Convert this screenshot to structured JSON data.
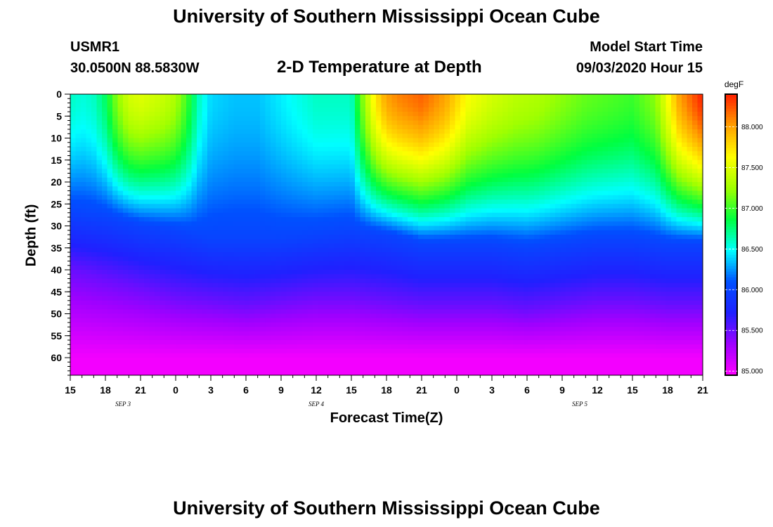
{
  "header": {
    "title": "University of Southern Mississippi Ocean Cube",
    "station": "USMR1",
    "coords": "30.0500N 88.5830W",
    "plot_title": "2-D Temperature at Depth",
    "start_label": "Model Start Time",
    "start_value": "09/03/2020 Hour 15"
  },
  "footer": {
    "title": "University of Southern Mississippi Ocean Cube"
  },
  "chart_data": {
    "type": "heatmap",
    "title": "2-D Temperature at Depth",
    "xlabel": "Forecast Time(Z)",
    "ylabel": "Depth (ft)",
    "units": "degF",
    "x_tick_labels": [
      "15",
      "18",
      "21",
      "0",
      "3",
      "6",
      "9",
      "12",
      "15",
      "18",
      "21",
      "0",
      "3",
      "6",
      "9",
      "12",
      "15",
      "18",
      "21"
    ],
    "x_hours_from_start": [
      0,
      3,
      6,
      9,
      12,
      15,
      18,
      21,
      24,
      27,
      30,
      33,
      36,
      39,
      42,
      45,
      48,
      51,
      54
    ],
    "x_range_hours": [
      0,
      54
    ],
    "date_labels": [
      {
        "text": "SEP 3",
        "hour": 4.5
      },
      {
        "text": "SEP 4",
        "hour": 21
      },
      {
        "text": "SEP 5",
        "hour": 43.5
      }
    ],
    "y_ticks": [
      0,
      5,
      10,
      15,
      20,
      25,
      30,
      35,
      40,
      45,
      50,
      55,
      60
    ],
    "y_range": [
      0,
      64
    ],
    "colorbar": {
      "label": "degF",
      "ticks": [
        "85.000",
        "85.500",
        "86.000",
        "86.500",
        "87.000",
        "87.500",
        "88.000"
      ],
      "range": [
        84.95,
        88.4
      ],
      "colors": [
        "#ff00ff",
        "#a000ff",
        "#2020ff",
        "#0050ff",
        "#00ffff",
        "#00ff40",
        "#a0ff00",
        "#ffff00",
        "#ffa000",
        "#ff2000"
      ]
    },
    "surface_temperature": {
      "hours": [
        0,
        1,
        2,
        3,
        4,
        5,
        6,
        7,
        8,
        9,
        10,
        11,
        12,
        14,
        16,
        18,
        21,
        24,
        25,
        26,
        27,
        28,
        30,
        31,
        32,
        33,
        34,
        36,
        38,
        40,
        42,
        44,
        46,
        48,
        50,
        51,
        52,
        53,
        54
      ],
      "degF": [
        86.6,
        86.55,
        86.6,
        86.8,
        87.2,
        87.45,
        87.5,
        87.45,
        87.4,
        87.3,
        87.0,
        86.6,
        86.4,
        86.35,
        86.35,
        86.45,
        86.6,
        86.6,
        87.2,
        87.7,
        88.0,
        88.1,
        88.2,
        88.1,
        88.0,
        87.8,
        87.6,
        87.45,
        87.35,
        87.3,
        87.2,
        87.1,
        87.05,
        87.0,
        87.2,
        87.6,
        88.0,
        88.2,
        88.4
      ]
    },
    "isotherm_depths_ft": {
      "hours": [
        0,
        3,
        6,
        9,
        12,
        15,
        18,
        21,
        24,
        27,
        30,
        33,
        36,
        39,
        42,
        45,
        48,
        51,
        54
      ],
      "86.0": [
        27,
        28,
        30,
        31,
        33,
        33,
        33,
        32,
        31,
        32,
        34,
        34,
        34,
        35,
        34,
        33,
        33,
        34,
        34
      ],
      "85.5": [
        40,
        42,
        44,
        46,
        47,
        48,
        47,
        46,
        46,
        47,
        48,
        48,
        48,
        49,
        48,
        47,
        47,
        48,
        48
      ]
    }
  }
}
